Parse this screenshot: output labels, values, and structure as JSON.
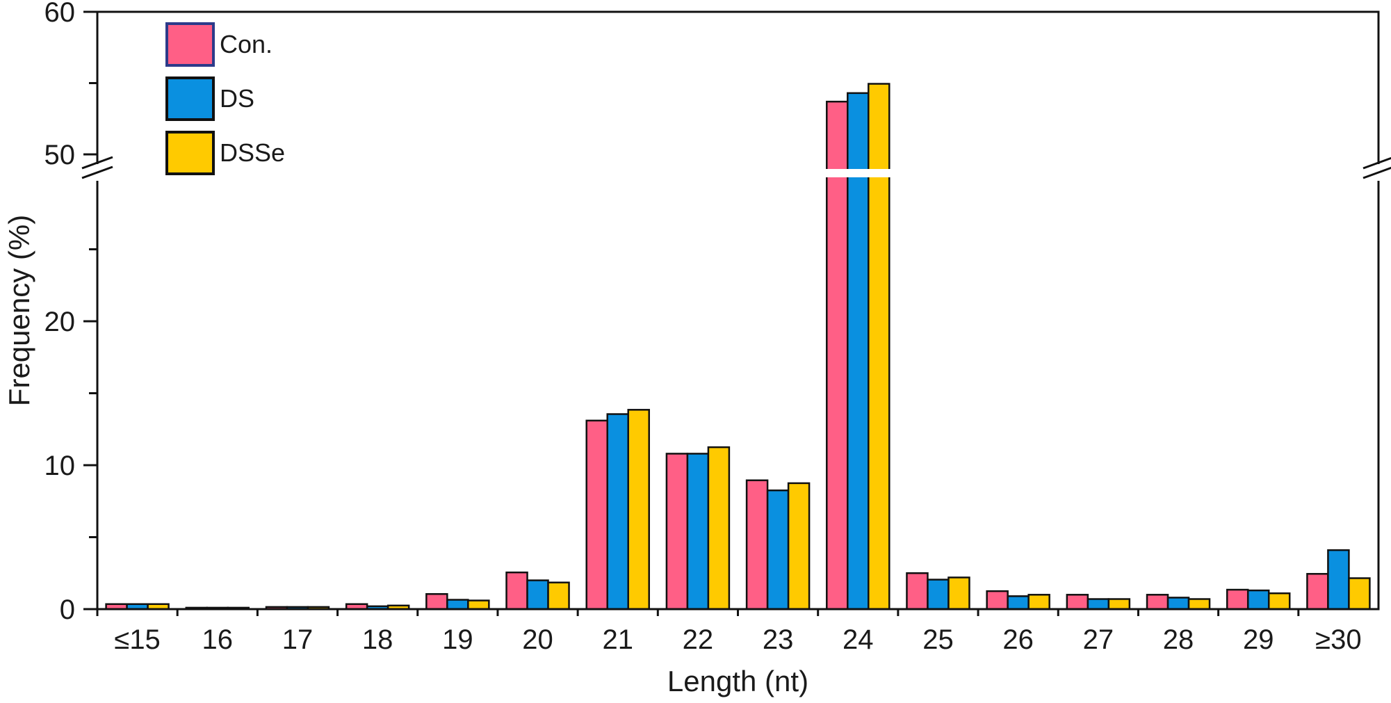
{
  "chart_data": {
    "type": "bar",
    "xlabel": "Length (nt)",
    "ylabel": "Frequency (%)",
    "y_axis": {
      "broken": true,
      "lower_segment": [
        0,
        30
      ],
      "upper_segment": [
        48,
        60
      ],
      "tick_labels": [
        "0",
        "10",
        "20",
        "50",
        "60"
      ]
    },
    "grid": false,
    "legend_position": "top-left",
    "categories": [
      "≤15",
      "16",
      "17",
      "18",
      "19",
      "20",
      "21",
      "22",
      "23",
      "24",
      "25",
      "26",
      "27",
      "28",
      "29",
      "≥30"
    ],
    "series": [
      {
        "name": "Con.",
        "color": "#ff5f86",
        "values": [
          0.35,
          0.1,
          0.15,
          0.35,
          1.05,
          2.55,
          13.1,
          10.8,
          8.95,
          53.7,
          2.5,
          1.25,
          1.0,
          1.0,
          1.35,
          2.45
        ]
      },
      {
        "name": "DS",
        "color": "#0a90e0",
        "values": [
          0.35,
          0.1,
          0.15,
          0.2,
          0.65,
          2.0,
          13.55,
          10.8,
          8.25,
          54.3,
          2.05,
          0.9,
          0.7,
          0.8,
          1.3,
          4.1
        ]
      },
      {
        "name": "DSSe",
        "color": "#ffca00",
        "values": [
          0.35,
          0.1,
          0.15,
          0.25,
          0.6,
          1.85,
          13.85,
          11.25,
          8.75,
          54.95,
          2.2,
          1.0,
          0.7,
          0.7,
          1.1,
          2.15
        ]
      }
    ]
  }
}
